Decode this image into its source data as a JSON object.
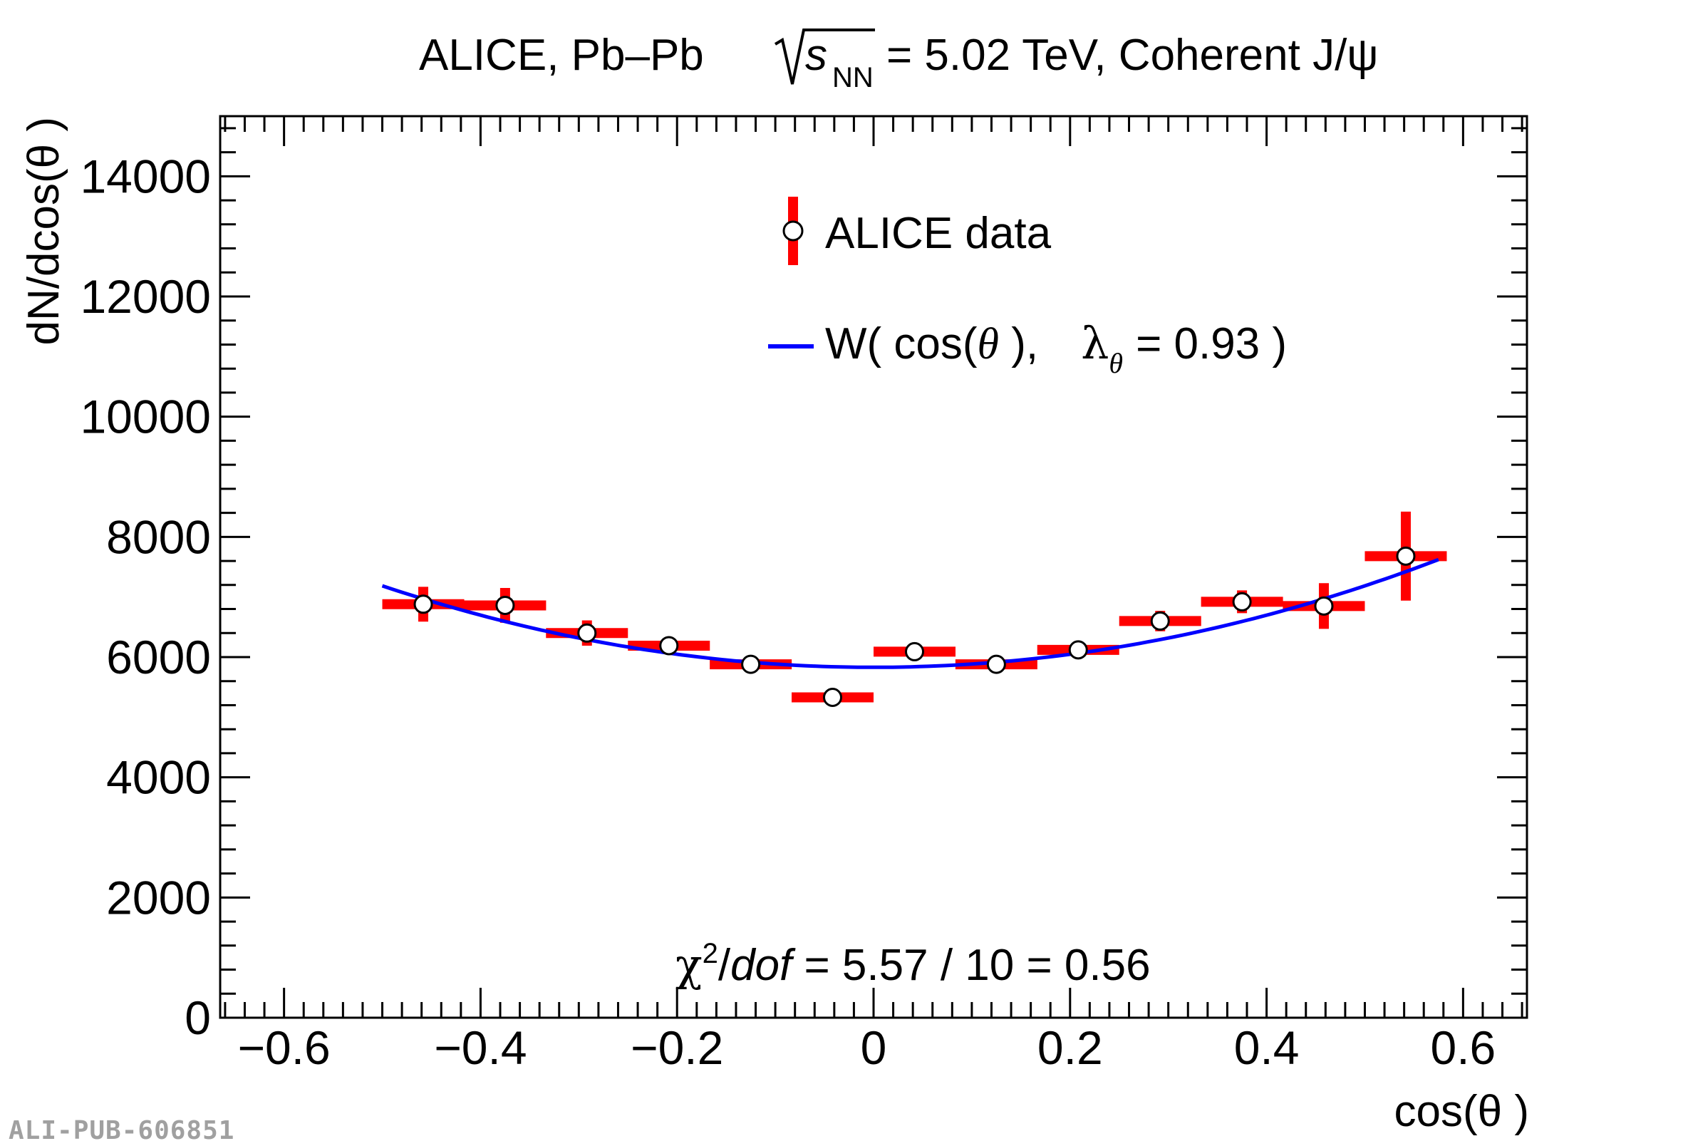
{
  "chart_data": {
    "type": "scatter",
    "title": {
      "part1": "ALICE, Pb–Pb",
      "s": "s",
      "nn": "NN",
      "part2": "= 5.02 TeV, Coherent J/ψ"
    },
    "xlabel": "cos(θ )",
    "ylabel": "dN/dcos(θ )",
    "xlim": [
      -0.665,
      0.665
    ],
    "ylim": [
      0,
      15000
    ],
    "x_ticks": [
      -0.6,
      -0.4,
      -0.2,
      0,
      0.2,
      0.4,
      0.6
    ],
    "x_tick_labels": [
      "−0.6",
      "−0.4",
      "−0.2",
      "0",
      "0.2",
      "0.4",
      "0.6"
    ],
    "y_ticks": [
      0,
      2000,
      4000,
      6000,
      8000,
      10000,
      12000,
      14000
    ],
    "y_tick_labels": [
      "0",
      "2000",
      "4000",
      "6000",
      "8000",
      "10000",
      "12000",
      "14000"
    ],
    "grid": false,
    "legend_position": "top-center",
    "series": [
      {
        "name": "ALICE data",
        "color": "#ff0000",
        "marker": "open-circle",
        "x": [
          -0.4583,
          -0.375,
          -0.2917,
          -0.2083,
          -0.125,
          -0.0417,
          0.0417,
          0.125,
          0.2083,
          0.2917,
          0.375,
          0.4583,
          0.5417
        ],
        "x_halfwidth": 0.0417,
        "y": [
          6880,
          6860,
          6400,
          6190,
          5880,
          5330,
          6090,
          5880,
          6120,
          6600,
          6920,
          6850,
          7680
        ],
        "yerr": [
          290,
          290,
          210,
          110,
          110,
          110,
          110,
          110,
          110,
          170,
          190,
          380,
          740
        ]
      },
      {
        "name_parts": {
          "prefix": "W( cos(",
          "theta": "θ",
          "mid": " ),",
          "lambda": "λ",
          "sub": "θ",
          "suffix": "= 0.93 )"
        },
        "color": "#0000ff",
        "type": "line",
        "function": "A*(1+lambda*x^2)",
        "A": 5830,
        "lambda": 0.93,
        "x_range": [
          -0.5,
          0.575
        ]
      }
    ],
    "annotation": {
      "chi": "χ",
      "sup": "2",
      "slash": "/",
      "dof": "dof",
      "rest": " = 5.57 / 10 = 0.56"
    }
  },
  "watermark": "ALI-PUB-606851"
}
